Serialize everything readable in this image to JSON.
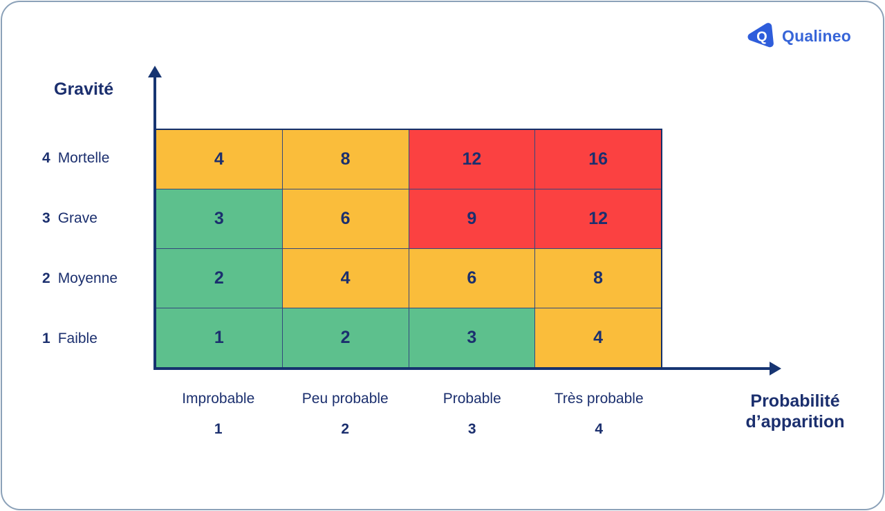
{
  "logo": {
    "brand": "Qualineo",
    "mark_letter": "Q"
  },
  "colors": {
    "navy_text": "#1B2F6E",
    "axis_navy": "#173572",
    "brand_blue": "#2E5DDB",
    "brand_text_blue": "#3765D8",
    "card_border": "#8BA1B8",
    "green": "#5DC08D",
    "yellow": "#FABD3B",
    "red": "#FB4141"
  },
  "chart_data": {
    "type": "heatmap",
    "y_axis": {
      "label": "Gravité",
      "categories": [
        {
          "value": "4",
          "name": "Mortelle"
        },
        {
          "value": "3",
          "name": "Grave"
        },
        {
          "value": "2",
          "name": "Moyenne"
        },
        {
          "value": "1",
          "name": "Faible"
        }
      ]
    },
    "x_axis": {
      "label": "Probabilité d’apparition",
      "label_lines": [
        "Probabilité",
        "d’apparition"
      ],
      "categories": [
        {
          "name": "Improbable",
          "value": "1"
        },
        {
          "name": "Peu probable",
          "value": "2"
        },
        {
          "name": "Probable",
          "value": "3"
        },
        {
          "name": "Très probable",
          "value": "4"
        }
      ]
    },
    "cell_colors": {
      "green": "#5DC08D",
      "yellow": "#FABD3B",
      "red": "#FB4141"
    },
    "rows": [
      {
        "severity": "4",
        "cells": [
          {
            "value": "4",
            "color": "yellow"
          },
          {
            "value": "8",
            "color": "yellow"
          },
          {
            "value": "12",
            "color": "red"
          },
          {
            "value": "16",
            "color": "red"
          }
        ]
      },
      {
        "severity": "3",
        "cells": [
          {
            "value": "3",
            "color": "green"
          },
          {
            "value": "6",
            "color": "yellow"
          },
          {
            "value": "9",
            "color": "red"
          },
          {
            "value": "12",
            "color": "red"
          }
        ]
      },
      {
        "severity": "2",
        "cells": [
          {
            "value": "2",
            "color": "green"
          },
          {
            "value": "4",
            "color": "yellow"
          },
          {
            "value": "6",
            "color": "yellow"
          },
          {
            "value": "8",
            "color": "yellow"
          }
        ]
      },
      {
        "severity": "1",
        "cells": [
          {
            "value": "1",
            "color": "green"
          },
          {
            "value": "2",
            "color": "green"
          },
          {
            "value": "3",
            "color": "green"
          },
          {
            "value": "4",
            "color": "yellow"
          }
        ]
      }
    ]
  }
}
